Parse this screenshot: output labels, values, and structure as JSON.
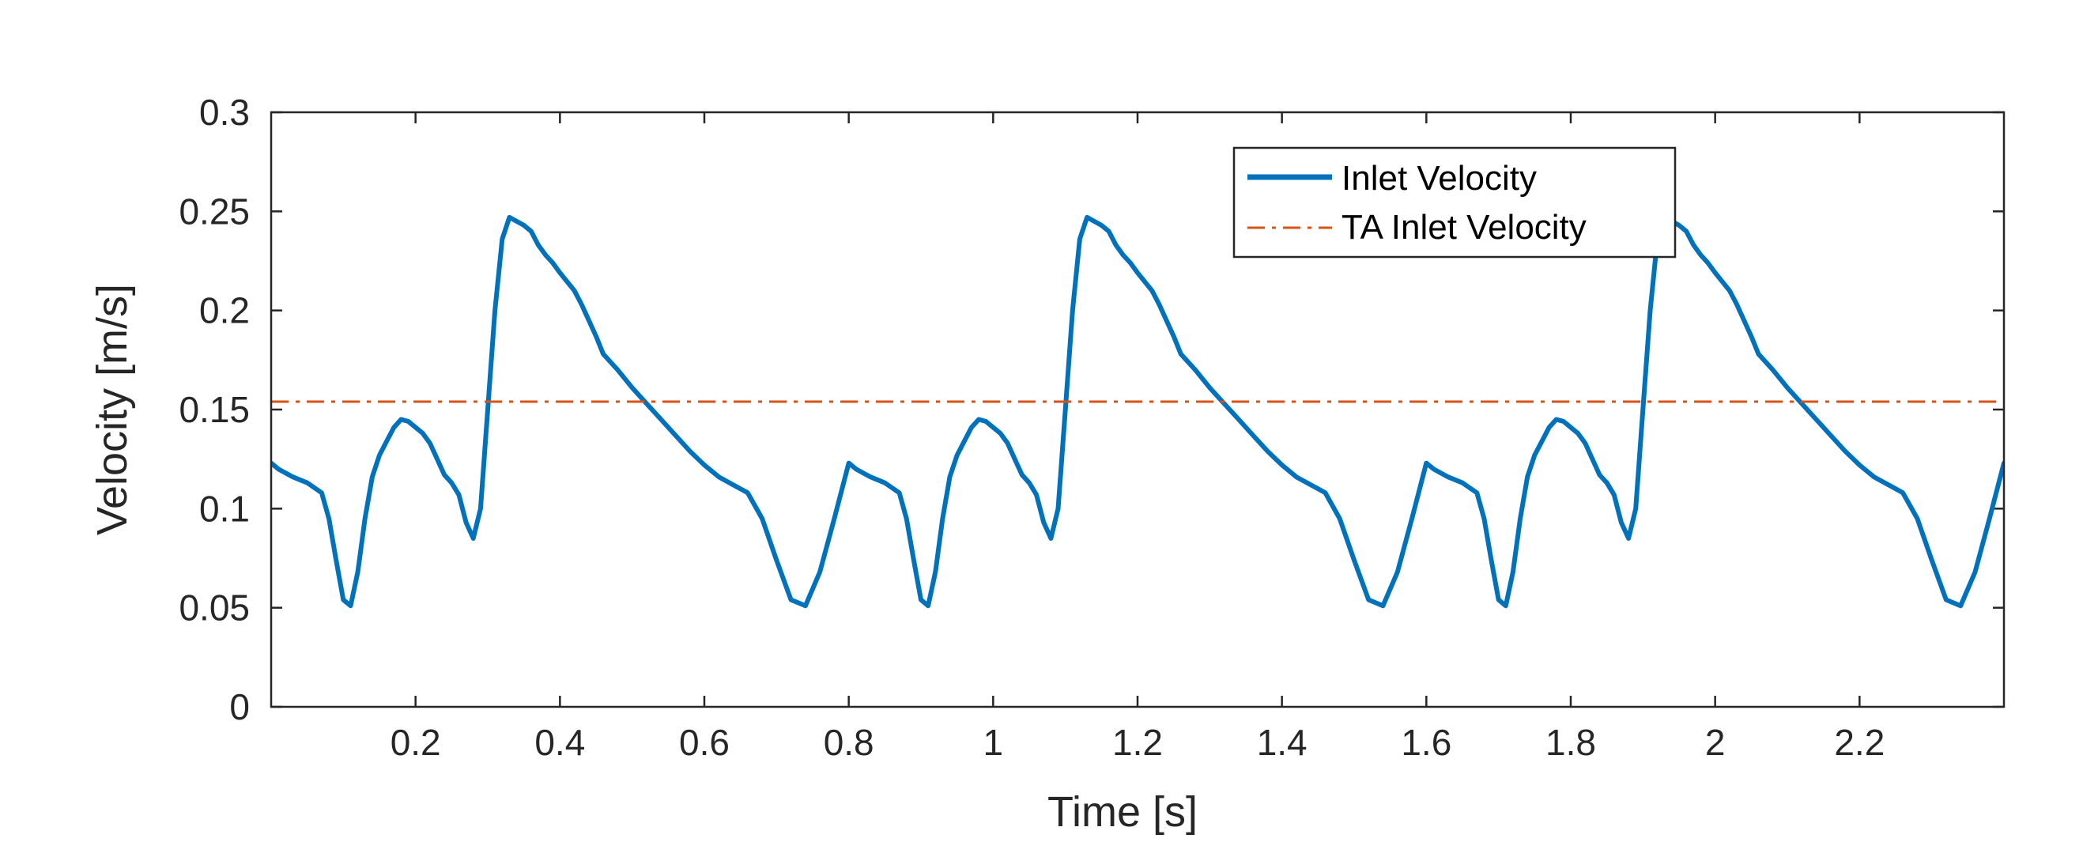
{
  "chart_data": {
    "type": "line",
    "xlabel": "Time [s]",
    "ylabel": "Velocity [m/s]",
    "xlim": [
      0,
      2.4
    ],
    "ylim": [
      0,
      0.3
    ],
    "xticks": [
      0.2,
      0.4,
      0.6,
      0.8,
      1,
      1.2,
      1.4,
      1.6,
      1.8,
      2,
      2.2
    ],
    "xtick_labels": [
      "0.2",
      "0.4",
      "0.6",
      "0.8",
      "1",
      "1.2",
      "1.4",
      "1.6",
      "1.8",
      "2",
      "2.2"
    ],
    "yticks": [
      0,
      0.05,
      0.1,
      0.15,
      0.2,
      0.25,
      0.3
    ],
    "ytick_labels": [
      "0",
      "0.05",
      "0.1",
      "0.15",
      "0.2",
      "0.25",
      "0.3"
    ],
    "grid": false,
    "legend_position": "top-right",
    "series": [
      {
        "name": "Inlet Velocity",
        "color": "#0072BD",
        "style": "solid",
        "period": 0.8,
        "repeat_to": 2.4,
        "x": [
          0,
          0.01,
          0.03,
          0.05,
          0.07,
          0.08,
          0.09,
          0.1,
          0.11,
          0.12,
          0.13,
          0.14,
          0.15,
          0.16,
          0.17,
          0.18,
          0.19,
          0.2,
          0.21,
          0.22,
          0.23,
          0.24,
          0.25,
          0.26,
          0.27,
          0.28,
          0.29,
          0.3,
          0.31,
          0.32,
          0.33,
          0.34,
          0.35,
          0.36,
          0.37,
          0.38,
          0.39,
          0.4,
          0.42,
          0.43,
          0.44,
          0.45,
          0.46,
          0.48,
          0.5,
          0.52,
          0.54,
          0.56,
          0.58,
          0.6,
          0.62,
          0.64,
          0.66,
          0.68,
          0.7,
          0.72,
          0.74,
          0.76,
          0.78,
          0.8
        ],
        "y": [
          0.123,
          0.12,
          0.116,
          0.113,
          0.108,
          0.095,
          0.074,
          0.054,
          0.051,
          0.068,
          0.095,
          0.116,
          0.127,
          0.134,
          0.141,
          0.145,
          0.144,
          0.141,
          0.138,
          0.133,
          0.125,
          0.117,
          0.113,
          0.107,
          0.093,
          0.085,
          0.1,
          0.15,
          0.2,
          0.236,
          0.247,
          0.245,
          0.243,
          0.24,
          0.233,
          0.228,
          0.224,
          0.219,
          0.21,
          0.203,
          0.195,
          0.187,
          0.178,
          0.17,
          0.161,
          0.153,
          0.145,
          0.137,
          0.129,
          0.122,
          0.116,
          0.112,
          0.108,
          0.095,
          0.074,
          0.054,
          0.051,
          0.068,
          0.095,
          0.123
        ]
      },
      {
        "name": "TA Inlet Velocity",
        "color": "#D95319",
        "style": "dash-dot",
        "x": [
          0,
          2.4
        ],
        "y": [
          0.154,
          0.154
        ]
      }
    ]
  }
}
